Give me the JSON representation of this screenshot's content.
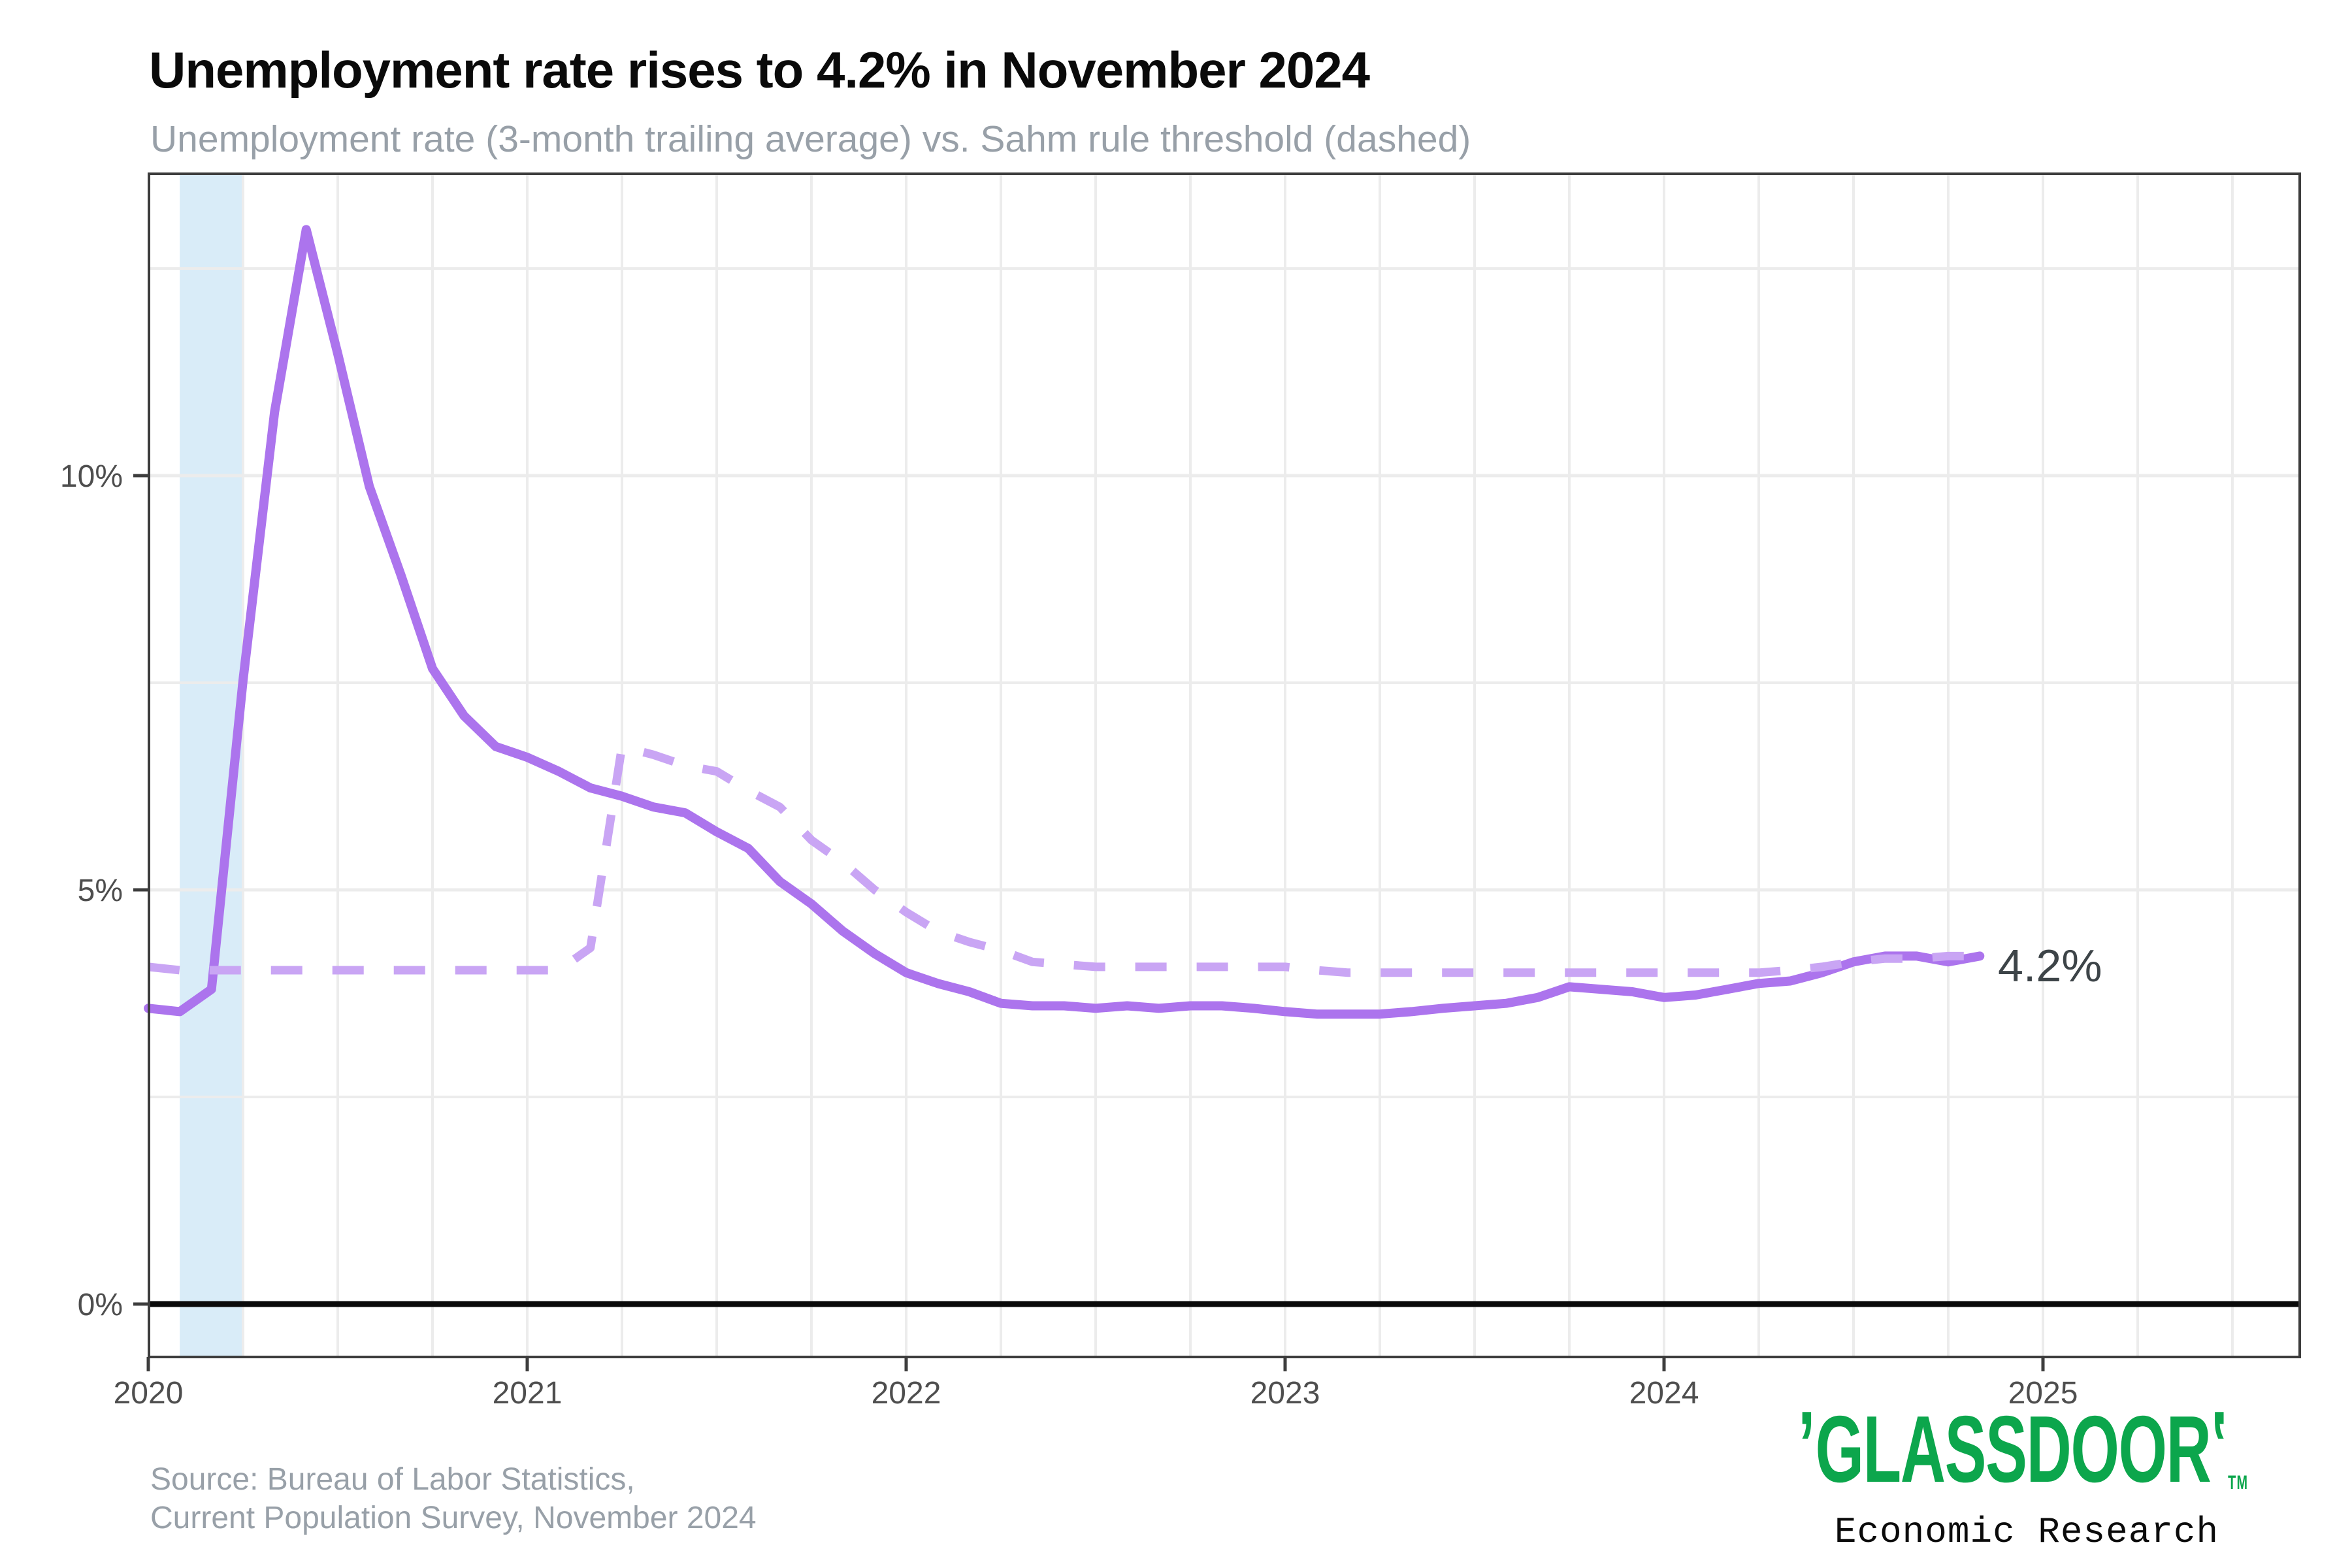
{
  "header": {
    "title": "Unemployment rate rises to 4.2% in November 2024",
    "subtitle": "Unemployment rate (3-month trailing average) vs. Sahm rule threshold (dashed)"
  },
  "annotation": {
    "latest_value_label": "4.2%"
  },
  "footer": {
    "source_line1": "Source: Bureau of Labor Statistics,",
    "source_line2": "Current Population Survey, November 2024"
  },
  "branding": {
    "left_mark": "’",
    "logo_text": "GLASSDOOR",
    "right_mark": "’",
    "trademark": "TM",
    "sub_brand": "Economic Research",
    "brand_color": "#0CA64C"
  },
  "chart_data": {
    "type": "line",
    "title": "Unemployment rate rises to 4.2% in November 2024",
    "subtitle": "Unemployment rate (3-month trailing average) vs. Sahm rule threshold (dashed)",
    "xlabel": "",
    "ylabel": "",
    "xlim": [
      2020.0,
      2025.68
    ],
    "ylim": [
      -0.64,
      13.64
    ],
    "x_tick_years": [
      2020,
      2021,
      2022,
      2023,
      2024,
      2025
    ],
    "x_tick_labels": [
      "2020",
      "2021",
      "2022",
      "2023",
      "2024",
      "2025"
    ],
    "y_major_ticks": [
      0,
      5,
      10
    ],
    "y_tick_labels": [
      "0%",
      "5%",
      "10%"
    ],
    "y_minor_gridlines": [
      2.5,
      7.5,
      12.5
    ],
    "vertical_gridline_step_years": 0.25,
    "grid_on": true,
    "legend_position": "none",
    "zero_line_color": "#0a0a0a",
    "gridline_color": "#ececec",
    "border_color": "#3d3d3d",
    "tick_label_color": "#4e4e4e",
    "recession_band": {
      "start": 2020.083,
      "end": 2020.25,
      "color": "#d9ecf8",
      "label": "recession-shading-feb-apr-2020"
    },
    "months": [
      "2020-01",
      "2020-02",
      "2020-03",
      "2020-04",
      "2020-05",
      "2020-06",
      "2020-07",
      "2020-08",
      "2020-09",
      "2020-10",
      "2020-11",
      "2020-12",
      "2021-01",
      "2021-02",
      "2021-03",
      "2021-04",
      "2021-05",
      "2021-06",
      "2021-07",
      "2021-08",
      "2021-09",
      "2021-10",
      "2021-11",
      "2021-12",
      "2022-01",
      "2022-02",
      "2022-03",
      "2022-04",
      "2022-05",
      "2022-06",
      "2022-07",
      "2022-08",
      "2022-09",
      "2022-10",
      "2022-11",
      "2022-12",
      "2023-01",
      "2023-02",
      "2023-03",
      "2023-04",
      "2023-05",
      "2023-06",
      "2023-07",
      "2023-08",
      "2023-09",
      "2023-10",
      "2023-11",
      "2023-12",
      "2024-01",
      "2024-02",
      "2024-03",
      "2024-04",
      "2024-05",
      "2024-06",
      "2024-07",
      "2024-08",
      "2024-09",
      "2024-10",
      "2024-11"
    ],
    "series": [
      {
        "name": "Unemployment rate (3-month trailing average)",
        "style": "solid",
        "color": "#ac74ed",
        "stroke_width": 14,
        "values": [
          3.57,
          3.53,
          3.8,
          7.53,
          10.77,
          12.97,
          11.47,
          9.87,
          8.8,
          7.67,
          7.1,
          6.73,
          6.6,
          6.43,
          6.23,
          6.13,
          6.0,
          5.93,
          5.7,
          5.5,
          5.1,
          4.83,
          4.5,
          4.23,
          4.0,
          3.87,
          3.77,
          3.63,
          3.6,
          3.6,
          3.57,
          3.6,
          3.57,
          3.6,
          3.6,
          3.57,
          3.53,
          3.5,
          3.5,
          3.5,
          3.53,
          3.57,
          3.6,
          3.63,
          3.7,
          3.83,
          3.8,
          3.77,
          3.7,
          3.73,
          3.8,
          3.87,
          3.9,
          4.0,
          4.13,
          4.2,
          4.2,
          4.13,
          4.2
        ]
      },
      {
        "name": "Sahm rule threshold (dashed)",
        "style": "dashed",
        "color": "#c9a5f4",
        "stroke_width": 13,
        "values": [
          4.07,
          4.03,
          4.03,
          4.03,
          4.03,
          4.03,
          4.03,
          4.03,
          4.03,
          4.03,
          4.03,
          4.03,
          4.03,
          4.03,
          4.3,
          6.73,
          6.63,
          6.5,
          6.43,
          6.2,
          6.0,
          5.6,
          5.33,
          5.0,
          4.73,
          4.5,
          4.37,
          4.27,
          4.13,
          4.1,
          4.07,
          4.07,
          4.07,
          4.07,
          4.07,
          4.07,
          4.07,
          4.03,
          4.0,
          4.0,
          4.0,
          4.0,
          4.0,
          4.0,
          4.0,
          4.0,
          4.0,
          4.0,
          4.0,
          4.0,
          4.0,
          4.0,
          4.03,
          4.07,
          4.13,
          4.17,
          4.17,
          4.2,
          4.2
        ]
      }
    ]
  }
}
